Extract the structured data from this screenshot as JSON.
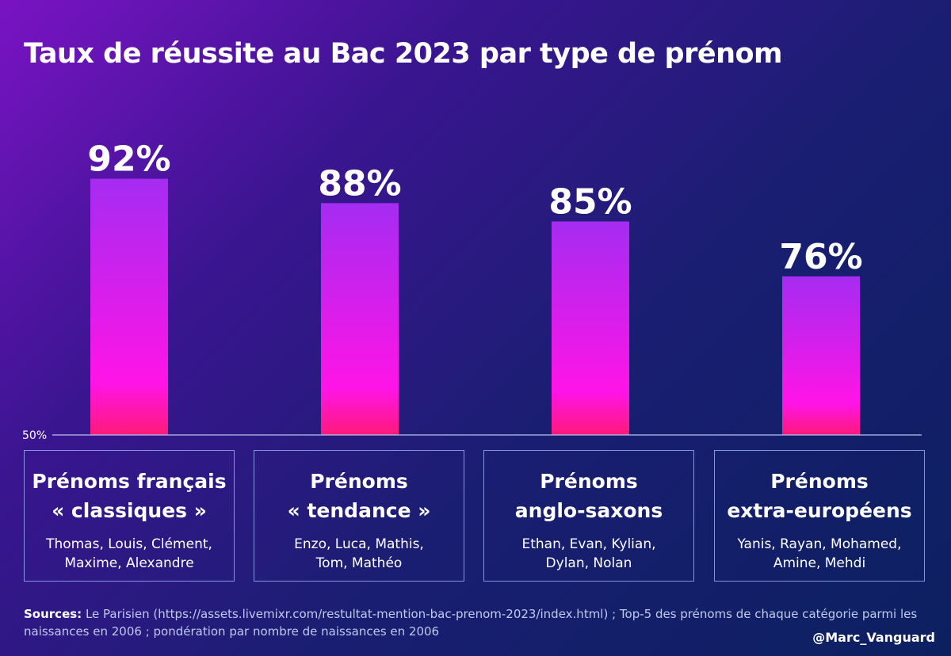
{
  "title": "Taux de réussite au Bac 2023 par type de prénom",
  "chart_data": {
    "type": "bar",
    "categories": [
      "Prénoms français « classiques »",
      "Prénoms « tendance »",
      "Prénoms anglo-saxons",
      "Prénoms extra-européens"
    ],
    "values": [
      92,
      88,
      85,
      76
    ],
    "value_labels": [
      "92%",
      "88%",
      "85%",
      "76%"
    ],
    "baseline_label": "50%",
    "ylim": [
      50,
      100
    ],
    "grid": false,
    "bar_gradient": [
      "#a52cf2",
      "#ff14e6",
      "#ff1a7a"
    ]
  },
  "categories": [
    {
      "title_lines": [
        "Prénoms français",
        "« classiques »"
      ],
      "examples": [
        "Thomas, Louis, Clément,",
        "Maxime, Alexandre"
      ]
    },
    {
      "title_lines": [
        "Prénoms",
        "« tendance »"
      ],
      "examples": [
        "Enzo, Luca, Mathis,",
        "Tom, Mathéo"
      ]
    },
    {
      "title_lines": [
        "Prénoms",
        "anglo-saxons"
      ],
      "examples": [
        "Ethan, Evan, Kylian,",
        "Dylan, Nolan"
      ]
    },
    {
      "title_lines": [
        "Prénoms",
        "extra-européens"
      ],
      "examples": [
        "Yanis, Rayan, Mohamed,",
        "Amine, Mehdi"
      ]
    }
  ],
  "sources": {
    "label": "Sources:",
    "text": " Le Parisien (https://assets.livemixr.com/restultat-mention-bac-prenom-2023/index.html) ; Top-5 des prénoms de chaque catégorie parmi les naissances en 2006 ; pondération par nombre de naissances en 2006"
  },
  "handle": "@Marc_Vanguard"
}
